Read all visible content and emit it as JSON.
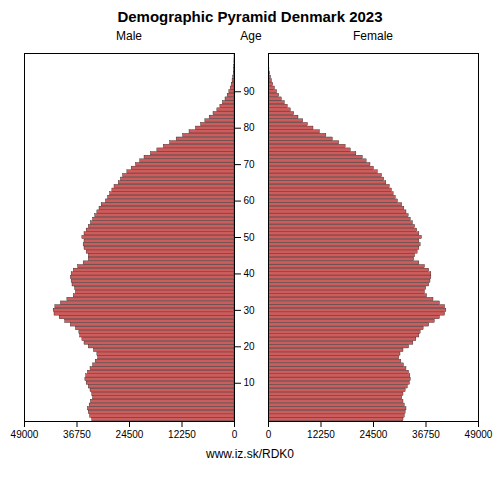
{
  "chart_data": {
    "type": "bar",
    "orientation": "horizontal",
    "title": "Demographic Pyramid Denmark 2023",
    "ylabel": "Age",
    "categories": [
      0,
      1,
      2,
      3,
      4,
      5,
      6,
      7,
      8,
      9,
      10,
      11,
      12,
      13,
      14,
      15,
      16,
      17,
      18,
      19,
      20,
      21,
      22,
      23,
      24,
      25,
      26,
      27,
      28,
      29,
      30,
      31,
      32,
      33,
      34,
      35,
      36,
      37,
      38,
      39,
      40,
      41,
      42,
      43,
      44,
      45,
      46,
      47,
      48,
      49,
      50,
      51,
      52,
      53,
      54,
      55,
      56,
      57,
      58,
      59,
      60,
      61,
      62,
      63,
      64,
      65,
      66,
      67,
      68,
      69,
      70,
      71,
      72,
      73,
      74,
      75,
      76,
      77,
      78,
      79,
      80,
      81,
      82,
      83,
      84,
      85,
      86,
      87,
      88,
      89,
      90,
      91,
      92,
      93,
      94,
      95,
      96,
      97,
      98,
      99,
      100
    ],
    "ylim": [
      -0.5,
      100.5
    ],
    "yticks": [
      10,
      20,
      30,
      40,
      50,
      60,
      70,
      80,
      90
    ],
    "xlim": [
      0,
      49000
    ],
    "xticks": [
      0,
      12250,
      24500,
      36750,
      49000
    ],
    "series": [
      {
        "name": "Male",
        "color": "#cd5c5c",
        "values": [
          33200,
          33700,
          34000,
          34200,
          33800,
          33500,
          33000,
          33200,
          33600,
          34000,
          34500,
          34800,
          34600,
          34200,
          33600,
          33000,
          32400,
          31800,
          32000,
          32800,
          34000,
          35000,
          35500,
          36000,
          36200,
          37000,
          38200,
          39500,
          40800,
          42000,
          42200,
          41800,
          40500,
          39000,
          37500,
          37000,
          37200,
          37800,
          38000,
          38200,
          38000,
          37500,
          36500,
          35200,
          34000,
          34000,
          34500,
          35000,
          35200,
          35000,
          35500,
          35000,
          34500,
          34000,
          33500,
          33000,
          32500,
          32000,
          31500,
          31000,
          30000,
          29500,
          29000,
          28500,
          28000,
          27000,
          26500,
          26000,
          25000,
          24000,
          23000,
          22000,
          21000,
          19500,
          18000,
          16500,
          15000,
          13500,
          12000,
          10500,
          9000,
          7800,
          6800,
          5800,
          4900,
          4000,
          3300,
          2700,
          2100,
          1600,
          1200,
          900,
          650,
          450,
          300,
          180,
          100,
          60,
          35,
          18,
          8
        ]
      },
      {
        "name": "Female",
        "color": "#cd5c5c",
        "values": [
          31500,
          31800,
          32000,
          32200,
          31800,
          31500,
          31200,
          31500,
          32000,
          32500,
          33000,
          33200,
          33100,
          32800,
          32200,
          31600,
          31000,
          30500,
          30800,
          31500,
          32800,
          33800,
          34500,
          35200,
          35500,
          36200,
          37500,
          38800,
          40000,
          41200,
          41500,
          41200,
          40000,
          38500,
          37000,
          36500,
          36800,
          37500,
          37800,
          38000,
          38000,
          37500,
          36500,
          35200,
          34000,
          34200,
          34800,
          35200,
          35500,
          35200,
          35800,
          35200,
          34700,
          34200,
          33700,
          33200,
          32700,
          32200,
          31700,
          31200,
          30200,
          29700,
          29200,
          28800,
          28300,
          27500,
          27000,
          26500,
          25500,
          24600,
          23800,
          22900,
          22000,
          20500,
          19200,
          18000,
          16500,
          15000,
          13500,
          12000,
          10500,
          9200,
          8100,
          7000,
          6000,
          5200,
          4500,
          3800,
          3100,
          2500,
          2000,
          1500,
          1100,
          800,
          580,
          380,
          220,
          130,
          80,
          42,
          18
        ]
      }
    ],
    "annotations": [
      "www.iz.sk/RDK0"
    ]
  }
}
